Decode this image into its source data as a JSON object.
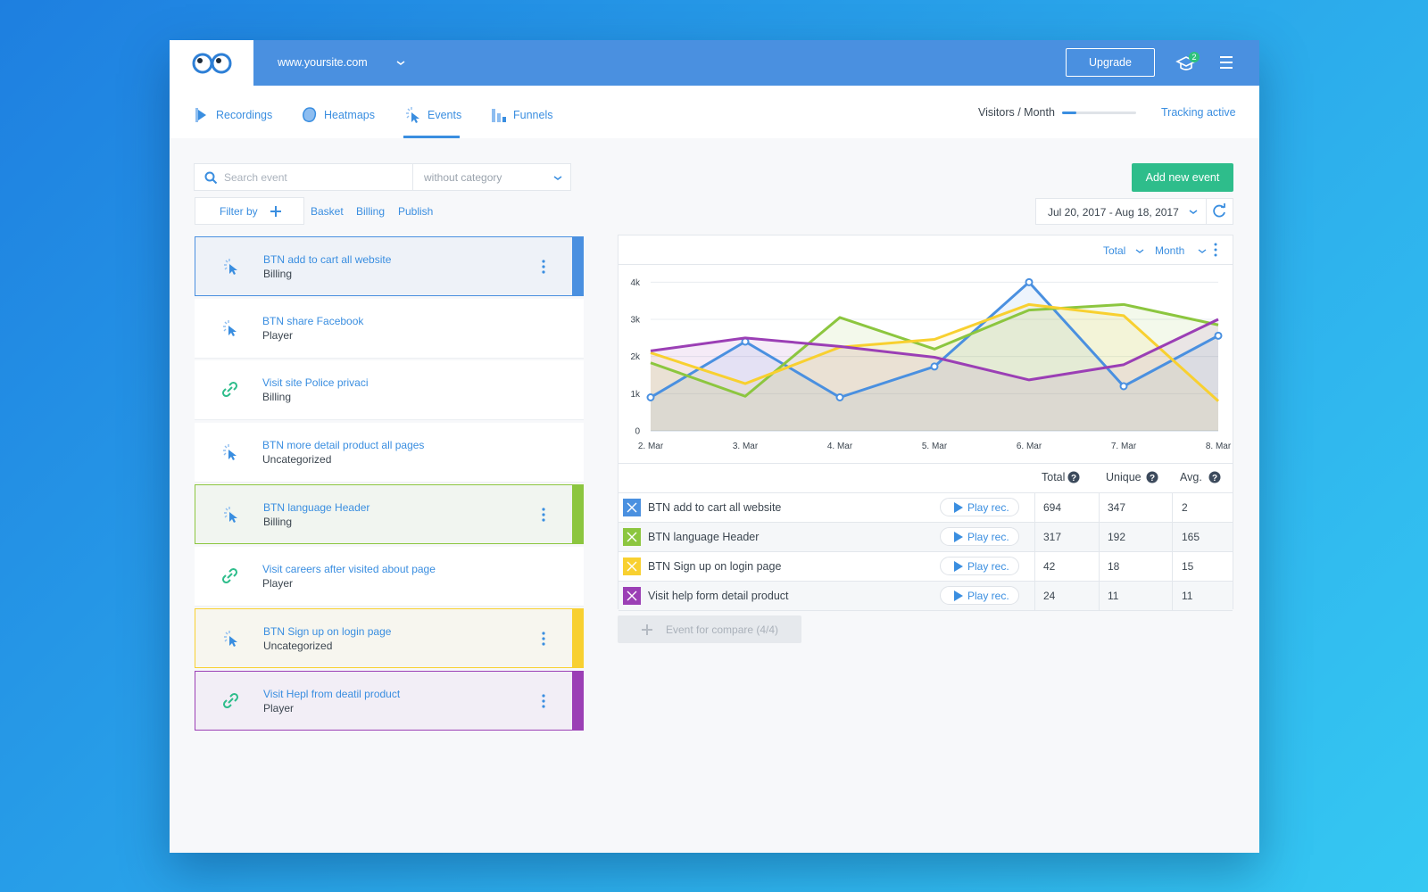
{
  "header": {
    "site": "www.yoursite.com",
    "upgrade": "Upgrade",
    "notification_count": 2
  },
  "nav": {
    "tabs": [
      "Recordings",
      "Heatmaps",
      "Events",
      "Funnels"
    ],
    "active": 2,
    "visitors_label": "Visitors / Month",
    "tracking": "Tracking active"
  },
  "toolbar": {
    "search_placeholder": "Search event",
    "category": "without category",
    "filter_by": "Filter by",
    "tags": [
      "Basket",
      "Billing",
      "Publish"
    ],
    "add_event": "Add new event",
    "date_range": "Jul 20, 2017 - Aug 18, 2017"
  },
  "events": [
    {
      "title": "BTN add to cart all website",
      "category": "Billing",
      "icon": "click",
      "color": "#4a90e0"
    },
    {
      "title": "BTN share Facebook",
      "category": "Player",
      "icon": "click"
    },
    {
      "title": "Visit site Police privaci",
      "category": "Billing",
      "icon": "link"
    },
    {
      "title": "BTN more detail product all pages",
      "category": "Uncategorized",
      "icon": "click"
    },
    {
      "title": "BTN language Header",
      "category": "Billing",
      "icon": "click",
      "color": "#8cc63f"
    },
    {
      "title": "Visit careers after visited about page",
      "category": "Player",
      "icon": "link"
    },
    {
      "title": "BTN Sign up on login page",
      "category": "Uncategorized",
      "icon": "click",
      "color": "#f8d030"
    },
    {
      "title": "Visit Hepl from deatil product",
      "category": "Player",
      "icon": "link",
      "color": "#9b3fb5"
    }
  ],
  "chart_controls": [
    "Total",
    "Month"
  ],
  "chart_data": {
    "type": "line",
    "categories": [
      "2. Mar",
      "3. Mar",
      "4. Mar",
      "5. Mar",
      "6. Mar",
      "7. Mar",
      "8. Mar"
    ],
    "series": [
      {
        "name": "BTN add to cart all website",
        "color": "#4a90e0",
        "markers": true,
        "values": [
          900,
          2400,
          900,
          1730,
          4000,
          1200,
          2560
        ]
      },
      {
        "name": "BTN language Header",
        "color": "#8cc63f",
        "values": [
          1830,
          930,
          3050,
          2200,
          3250,
          3400,
          2850
        ]
      },
      {
        "name": "BTN Sign up on login page",
        "color": "#f8d030",
        "values": [
          2100,
          1270,
          2250,
          2460,
          3400,
          3100,
          800
        ]
      },
      {
        "name": "Visit help form detail product",
        "color": "#9b3fb5",
        "values": [
          2150,
          2500,
          2270,
          1980,
          1370,
          1780,
          3000
        ]
      }
    ],
    "ylim": [
      0,
      4200
    ],
    "yticks": [
      0,
      {
        "value": 1000,
        "label": "1k"
      },
      {
        "value": 2000,
        "label": "2k"
      },
      {
        "value": 3000,
        "label": "3k"
      },
      {
        "value": 4000,
        "label": "4k"
      }
    ],
    "grid": true
  },
  "table": {
    "columns": [
      "Total",
      "Unique",
      "Avg."
    ],
    "play_label": "Play rec.",
    "rows": [
      [
        694,
        347,
        2
      ],
      [
        317,
        192,
        165
      ],
      [
        42,
        18,
        15
      ],
      [
        24,
        11,
        11
      ]
    ],
    "compare": "Event for compare (4/4)"
  }
}
